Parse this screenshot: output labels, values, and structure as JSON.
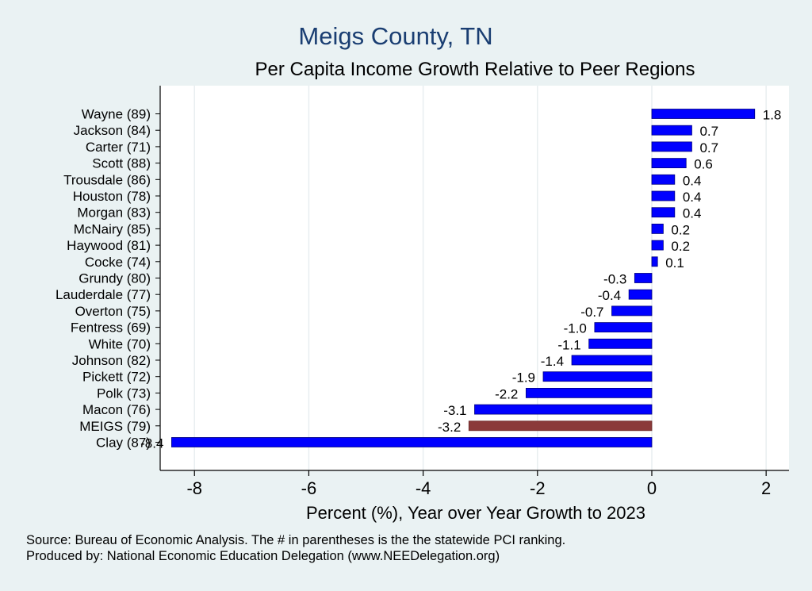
{
  "title": "Meigs County, TN",
  "subtitle": "Per Capita Income Growth Relative to Peer Regions",
  "footer": {
    "source": "Source: Bureau of Economic Analysis. The # in parentheses is the the statewide PCI ranking.",
    "produced_by": "Produced by: National Economic Education Delegation (www.NEEDelegation.org)"
  },
  "colors": {
    "background": "#eaf2f3",
    "plot_background": "#ffffff",
    "bar": "#0000ff",
    "highlight_bar": "#8b3a3a",
    "title": "#1a3e72"
  },
  "chart_data": {
    "type": "bar",
    "orientation": "horizontal",
    "title": "Meigs County, TN",
    "subtitle": "Per Capita Income Growth Relative to Peer Regions",
    "xlabel": "Percent (%), Year over Year Growth to 2023",
    "ylabel": "",
    "xlim": [
      -8.6,
      2.4
    ],
    "xticks": [
      -8,
      -6,
      -4,
      -2,
      0,
      2
    ],
    "grid": true,
    "categories": [
      "Wayne (89)",
      "Jackson (84)",
      "Carter (71)",
      "Scott (88)",
      "Trousdale (86)",
      "Houston (78)",
      "Morgan (83)",
      "McNairy (85)",
      "Haywood (81)",
      "Cocke (74)",
      "Grundy (80)",
      "Lauderdale (77)",
      "Overton (75)",
      "Fentress (69)",
      "White (70)",
      "Johnson (82)",
      "Pickett (72)",
      "Polk (73)",
      "Macon (76)",
      "MEIGS (79)",
      "Clay (87)"
    ],
    "values": [
      1.8,
      0.7,
      0.7,
      0.6,
      0.4,
      0.4,
      0.4,
      0.2,
      0.2,
      0.1,
      -0.3,
      -0.4,
      -0.7,
      -1.0,
      -1.1,
      -1.4,
      -1.9,
      -2.2,
      -3.1,
      -3.2,
      -8.4
    ],
    "labels": [
      "1.8",
      "0.7",
      "0.7",
      "0.6",
      "0.4",
      "0.4",
      "0.4",
      "0.2",
      "0.2",
      "0.1",
      "-0.3",
      "-0.4",
      "-0.7",
      "-1.0",
      "-1.1",
      "-1.4",
      "-1.9",
      "-2.2",
      "-3.1",
      "-3.2",
      "-8.4"
    ],
    "highlight": "MEIGS (79)"
  }
}
